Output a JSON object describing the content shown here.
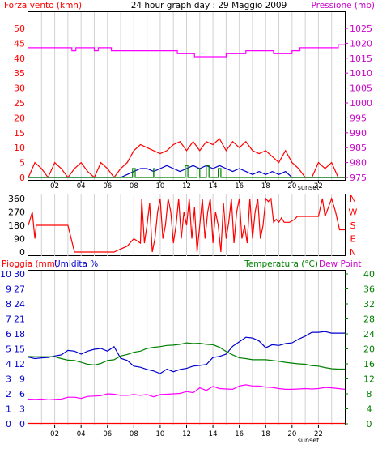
{
  "chart_data": [
    {
      "type": "line",
      "title": "24 hour graph day : 29 Maggio 2009",
      "left_axis_title": "Forza vento (kmh)",
      "right_axis_title": "Pressione (mb)",
      "x_tick_labels": [
        "02",
        "04",
        "06",
        "08",
        "10",
        "12",
        "14",
        "16",
        "18",
        "20",
        "22"
      ],
      "sunset_label": "sunset",
      "left_ticks": [
        "0",
        "5",
        "10",
        "15",
        "20",
        "25",
        "30",
        "35",
        "40",
        "45",
        "50"
      ],
      "right_ticks": [
        "975",
        "980",
        "985",
        "990",
        "995",
        "1000",
        "1005",
        "1010",
        "1015",
        "1020",
        "1025"
      ],
      "left_range": [
        0,
        50
      ],
      "right_range": [
        975,
        1025
      ],
      "x_range": [
        0,
        24
      ],
      "series": [
        {
          "color": "#ff00ff",
          "axis": "right",
          "x": [
            0,
            3.3,
            3.3,
            3.6,
            3.6,
            5,
            5,
            5.3,
            5.3,
            6.3,
            6.3,
            7.3,
            7.3,
            11.3,
            11.3,
            12.6,
            12.6,
            15,
            15,
            16.5,
            16.5,
            18.6,
            18.6,
            20,
            20,
            20.6,
            20.6,
            23.5,
            23.5,
            24
          ],
          "y": [
            1018.5,
            1018.5,
            1017.5,
            1017.5,
            1018.5,
            1018.5,
            1017.5,
            1017.5,
            1018.5,
            1018.5,
            1017.5,
            1017.5,
            1017.5,
            1017.5,
            1016.5,
            1016.5,
            1015.5,
            1015.5,
            1016.5,
            1016.5,
            1017.5,
            1017.5,
            1016.5,
            1016.5,
            1017.5,
            1017.5,
            1018.5,
            1018.5,
            1019.5,
            1019.5
          ]
        },
        {
          "color": "#ff0000",
          "axis": "left",
          "x": [
            0,
            0.5,
            1,
            1.5,
            2,
            2.5,
            3,
            3.5,
            4,
            4.5,
            5,
            5.5,
            6,
            6.5,
            7,
            7.5,
            8,
            8.5,
            9,
            9.5,
            10,
            10.5,
            11,
            11.5,
            12,
            12.5,
            13,
            13.5,
            14,
            14.5,
            15,
            15.5,
            16,
            16.5,
            17,
            17.5,
            18,
            18.5,
            19,
            19.5,
            20,
            20.5,
            21,
            21.5,
            22,
            22.5,
            23,
            23.5,
            24
          ],
          "y": [
            0,
            5,
            3,
            0,
            5,
            3,
            0,
            3,
            5,
            2,
            0,
            5,
            3,
            0,
            3,
            5,
            9,
            11,
            10,
            9,
            8,
            9,
            11,
            12,
            9,
            12,
            9,
            12,
            11,
            13,
            9,
            12,
            10,
            12,
            9,
            8,
            9,
            7,
            5,
            9,
            5,
            3,
            0,
            0,
            5,
            3,
            5,
            0,
            0
          ]
        },
        {
          "color": "#0000cc",
          "axis": "left",
          "x": [
            0,
            1,
            2,
            3,
            4,
            5,
            6,
            7,
            7.5,
            8,
            8.5,
            9,
            9.5,
            10,
            10.5,
            11,
            11.5,
            12,
            12.5,
            13,
            13.5,
            14,
            14.5,
            15,
            15.5,
            16,
            16.5,
            17,
            17.5,
            18,
            18.5,
            19,
            19.5,
            20,
            21,
            22,
            23,
            24
          ],
          "y": [
            0,
            0,
            0,
            0,
            0,
            0,
            0,
            0,
            1,
            2,
            3,
            3,
            2,
            3,
            4,
            3,
            2,
            3,
            4,
            3,
            4,
            3,
            4,
            3,
            2,
            3,
            2,
            1,
            2,
            1,
            2,
            1,
            2,
            0,
            0,
            0,
            0,
            0
          ]
        },
        {
          "color": "#008000",
          "axis": "left",
          "x": [
            0,
            7.5,
            7.9,
            7.9,
            8.1,
            8.1,
            9.5,
            9.5,
            9.6,
            9.6,
            11.9,
            11.9,
            12.1,
            12.1,
            12.8,
            12.8,
            13,
            13,
            13.5,
            13.5,
            13.7,
            13.7,
            14.4,
            14.4,
            14.6,
            14.6,
            24
          ],
          "y": [
            0,
            0,
            0,
            3,
            3,
            0,
            0,
            3,
            3,
            0,
            0,
            4,
            4,
            0,
            0,
            3,
            3,
            0,
            0,
            4,
            4,
            0,
            0,
            3,
            3,
            0,
            0
          ]
        }
      ]
    },
    {
      "type": "line",
      "left_ticks": [
        "360",
        "270",
        "180",
        "90",
        "0"
      ],
      "right_letters": [
        "N",
        "W",
        "S",
        "E",
        "N"
      ],
      "y_range": [
        0,
        360
      ],
      "x_range": [
        0,
        24
      ],
      "series": [
        {
          "color": "#ff0000",
          "x": [
            0,
            0.3,
            0.5,
            0.6,
            0.7,
            1,
            2,
            3,
            3.5,
            4,
            4.5,
            5,
            5.5,
            6,
            6.5,
            7,
            7.5,
            8,
            8.5,
            8.6,
            8.8,
            9,
            9.2,
            9.4,
            9.6,
            9.8,
            10,
            10.2,
            10.4,
            10.6,
            10.8,
            11,
            11.2,
            11.4,
            11.6,
            11.8,
            12,
            12.2,
            12.4,
            12.6,
            12.8,
            13,
            13.2,
            13.4,
            13.6,
            13.8,
            14,
            14.2,
            14.4,
            14.6,
            14.8,
            15,
            15.2,
            15.4,
            15.6,
            15.8,
            16,
            16.2,
            16.4,
            16.6,
            16.8,
            17,
            17.2,
            17.4,
            17.6,
            17.8,
            18,
            18.2,
            18.4,
            18.6,
            18.8,
            19,
            19.2,
            19.4,
            19.6,
            19.8,
            20,
            20.2,
            20.4,
            20.6,
            20.8,
            21,
            22,
            22.3,
            22.5,
            23,
            23.3,
            23.6,
            24
          ],
          "y": [
            180,
            270,
            90,
            180,
            180,
            180,
            180,
            180,
            0,
            0,
            0,
            0,
            0,
            0,
            0,
            20,
            40,
            90,
            60,
            360,
            60,
            180,
            330,
            0,
            90,
            270,
            360,
            90,
            180,
            360,
            270,
            60,
            180,
            360,
            90,
            270,
            180,
            360,
            90,
            300,
            0,
            180,
            360,
            90,
            270,
            360,
            60,
            270,
            180,
            0,
            330,
            90,
            200,
            360,
            60,
            270,
            360,
            90,
            180,
            60,
            360,
            90,
            270,
            360,
            90,
            180,
            360,
            340,
            360,
            200,
            220,
            200,
            230,
            200,
            200,
            200,
            210,
            220,
            240,
            240,
            240,
            240,
            240,
            360,
            240,
            360,
            270,
            150,
            150
          ]
        }
      ]
    },
    {
      "type": "line",
      "left_axis_title": "Pioggia (mm)",
      "left_axis_title2": "Umidita %",
      "right_axis_title": "Temperatura (°C)",
      "right_axis_title2": "Dew Point",
      "rain_ticks": [
        "0",
        "1",
        "2",
        "3",
        "4",
        "5",
        "6",
        "7",
        "8",
        "9",
        "10"
      ],
      "hum_ticks": [
        "0",
        "3",
        "6",
        "9",
        "12",
        "15",
        "18",
        "21",
        "24",
        "27",
        "30"
      ],
      "temp_ticks": [
        "0",
        "4",
        "8",
        "12",
        "16",
        "20",
        "24",
        "28",
        "32",
        "36",
        "40"
      ],
      "temp_range": [
        0,
        40
      ],
      "x_range": [
        0,
        24
      ],
      "series": [
        {
          "color": "#0000cc",
          "axis": "temp",
          "x": [
            0,
            0.5,
            1,
            1.5,
            2,
            2.5,
            3,
            3.5,
            4,
            4.5,
            5,
            5.5,
            6,
            6.5,
            7,
            7.5,
            8,
            8.5,
            9,
            9.5,
            10,
            10.5,
            11,
            11.5,
            12,
            12.5,
            13,
            13.5,
            14,
            14.5,
            15,
            15.5,
            16,
            16.5,
            17,
            17.5,
            18,
            18.5,
            19,
            19.5,
            20,
            20.5,
            21,
            21.5,
            22,
            22.5,
            23,
            23.5,
            24
          ],
          "y": [
            17.8,
            17.4,
            17.6,
            17.7,
            18.1,
            18.4,
            19.6,
            19.4,
            18.6,
            19.4,
            19.9,
            20.1,
            19.4,
            20.6,
            17.5,
            16.9,
            15.4,
            15.1,
            14.5,
            14.1,
            13.4,
            14.6,
            13.9,
            14.5,
            14.8,
            15.4,
            15.6,
            15.8,
            17.7,
            18,
            18.6,
            20.7,
            21.9,
            23.1,
            22.9,
            22.1,
            20.3,
            21.1,
            20.9,
            21.4,
            21.6,
            22.6,
            23.4,
            24.4,
            24.4,
            24.6,
            24.2,
            24.2,
            24.2
          ]
        },
        {
          "color": "#008000",
          "axis": "temp",
          "x": [
            0,
            0.5,
            1,
            1.5,
            2,
            2.5,
            3,
            3.5,
            4,
            4.5,
            5,
            5.5,
            6,
            6.5,
            7,
            7.5,
            8,
            8.5,
            9,
            9.5,
            10,
            10.5,
            11,
            11.5,
            12,
            12.5,
            13,
            13.5,
            14,
            14.5,
            15,
            15.5,
            16,
            16.5,
            17,
            17.5,
            18,
            18.5,
            19,
            19.5,
            20,
            20.5,
            21,
            21.5,
            22,
            22.5,
            23,
            23.5,
            24
          ],
          "y": [
            18,
            17.9,
            17.9,
            17.9,
            17.9,
            17.4,
            17,
            16.9,
            16.4,
            15.9,
            15.7,
            16.1,
            16.9,
            17.1,
            18.1,
            18.5,
            19.1,
            19.4,
            20.1,
            20.4,
            20.6,
            20.9,
            21,
            21.2,
            21.6,
            21.4,
            21.5,
            21.2,
            21.1,
            20.4,
            19.3,
            18.4,
            17.6,
            17.4,
            17.1,
            17.1,
            17.1,
            16.9,
            16.7,
            16.4,
            16.2,
            16,
            15.9,
            15.5,
            15.4,
            15,
            14.7,
            14.6,
            14.6
          ]
        },
        {
          "color": "#ff00ff",
          "axis": "temp",
          "x": [
            0,
            0.5,
            1,
            1.5,
            2,
            2.5,
            3,
            3.5,
            4,
            4.5,
            5,
            5.5,
            6,
            6.5,
            7,
            7.5,
            8,
            8.5,
            9,
            9.5,
            10,
            10.5,
            11,
            11.5,
            12,
            12.5,
            13,
            13.5,
            14,
            14.5,
            15,
            15.5,
            16,
            16.5,
            17,
            17.5,
            18,
            18.5,
            19,
            19.5,
            20,
            20.5,
            21,
            21.5,
            22,
            22.5,
            23,
            23.5,
            24
          ],
          "y": [
            6.6,
            6.5,
            6.6,
            6.4,
            6.5,
            6.6,
            7.1,
            7.1,
            6.8,
            7.3,
            7.4,
            7.5,
            8,
            7.9,
            7.6,
            7.6,
            7.8,
            7.6,
            7.8,
            7.2,
            7.8,
            7.9,
            8,
            8.1,
            8.6,
            8.3,
            9.6,
            8.9,
            10,
            9.4,
            9.3,
            9.2,
            10.1,
            10.4,
            10.1,
            10.1,
            9.8,
            9.7,
            9.4,
            9.2,
            9.2,
            9.3,
            9.4,
            9.3,
            9.4,
            9.7,
            9.6,
            9.4,
            9.2
          ]
        },
        {
          "color": "#ff0000",
          "axis": "temp",
          "x": [
            0,
            24
          ],
          "y": [
            0.1,
            0.1
          ]
        }
      ]
    }
  ]
}
